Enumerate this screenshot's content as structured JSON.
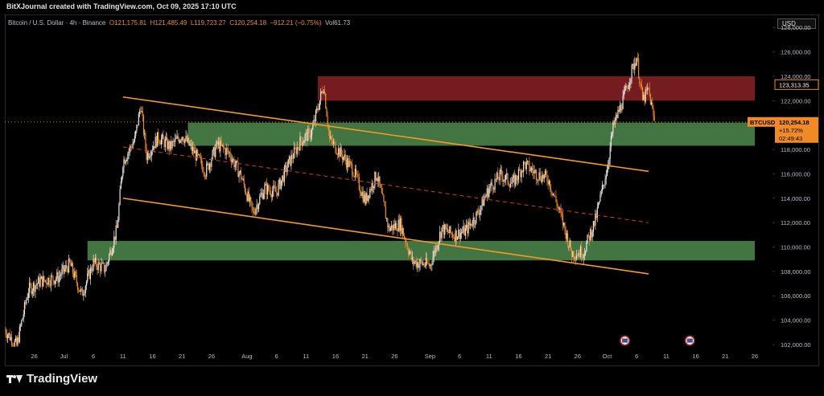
{
  "header": {
    "text": "BitXJournal created with TradingView.com, Oct 09, 2025 17:10 UTC"
  },
  "legend": {
    "name": "Bitcoin / U.S. Dollar · 4h · Binance",
    "open": "O121,175.81",
    "high": "H121,485.49",
    "low": "L119,723.27",
    "close": "C120,254.18",
    "change": "−912.21 (−0.75%)",
    "volume": "Vol61.73"
  },
  "currency_button": "USD",
  "footer": {
    "brand": "TradingView"
  },
  "colors": {
    "background": "#000000",
    "candle_up": "#e6e6e6",
    "candle_down": "#f08a24",
    "channel": "#f59a23",
    "midline": "#d0344a",
    "supply_zone": "#7a1e22",
    "demand_zone": "#4f8a4e",
    "price_tag": "#f08a24"
  },
  "chart_data": {
    "type": "candlestick",
    "symbol": "BTCUSD",
    "interval": "4h",
    "exchange": "Binance",
    "y_range": [
      101800,
      129000
    ],
    "y_ticks": [
      102000,
      104000,
      106000,
      108000,
      110000,
      112000,
      114000,
      116000,
      118000,
      120000,
      122000,
      124000,
      126000,
      128000
    ],
    "y_tick_labels": [
      "102,000.00",
      "104,000.00",
      "106,000.00",
      "108,000.00",
      "110,000.00",
      "112,000.00",
      "114,000.00",
      "116,000.00",
      "118,000.00",
      "120,000.00",
      "122,000.00",
      "124,000.00",
      "126,000.00",
      "128,000.00"
    ],
    "x_range": [
      "2025-06-21",
      "2025-10-29"
    ],
    "x_ticks": [
      {
        "date": "2025-06-26",
        "label": "26"
      },
      {
        "date": "2025-07-01",
        "label": "Jul"
      },
      {
        "date": "2025-07-06",
        "label": "6"
      },
      {
        "date": "2025-07-11",
        "label": "11"
      },
      {
        "date": "2025-07-16",
        "label": "16"
      },
      {
        "date": "2025-07-21",
        "label": "21"
      },
      {
        "date": "2025-07-26",
        "label": "26"
      },
      {
        "date": "2025-08-01",
        "label": "Aug"
      },
      {
        "date": "2025-08-06",
        "label": "6"
      },
      {
        "date": "2025-08-11",
        "label": "11"
      },
      {
        "date": "2025-08-16",
        "label": "16"
      },
      {
        "date": "2025-08-21",
        "label": "21"
      },
      {
        "date": "2025-08-26",
        "label": "26"
      },
      {
        "date": "2025-09-01",
        "label": "Sep"
      },
      {
        "date": "2025-09-06",
        "label": "6"
      },
      {
        "date": "2025-09-11",
        "label": "11"
      },
      {
        "date": "2025-09-16",
        "label": "16"
      },
      {
        "date": "2025-09-21",
        "label": "21"
      },
      {
        "date": "2025-09-26",
        "label": "26"
      },
      {
        "date": "2025-10-01",
        "label": "Oct"
      },
      {
        "date": "2025-10-06",
        "label": "6"
      },
      {
        "date": "2025-10-11",
        "label": "11"
      },
      {
        "date": "2025-10-16",
        "label": "16"
      },
      {
        "date": "2025-10-21",
        "label": "21"
      },
      {
        "date": "2025-10-26",
        "label": "26"
      }
    ],
    "price_path": [
      [
        "2025-06-21",
        103200
      ],
      [
        "2025-06-23",
        101900
      ],
      [
        "2025-06-25",
        106500
      ],
      [
        "2025-06-27",
        107200
      ],
      [
        "2025-06-30",
        107500
      ],
      [
        "2025-07-02",
        108600
      ],
      [
        "2025-07-04",
        106100
      ],
      [
        "2025-07-06",
        108700
      ],
      [
        "2025-07-08",
        108200
      ],
      [
        "2025-07-10",
        111500
      ],
      [
        "2025-07-11",
        117000
      ],
      [
        "2025-07-13",
        118800
      ],
      [
        "2025-07-14",
        121600
      ],
      [
        "2025-07-15",
        117500
      ],
      [
        "2025-07-17",
        119000
      ],
      [
        "2025-07-19",
        118200
      ],
      [
        "2025-07-21",
        119200
      ],
      [
        "2025-07-23",
        117800
      ],
      [
        "2025-07-25",
        116200
      ],
      [
        "2025-07-27",
        118400
      ],
      [
        "2025-07-29",
        117700
      ],
      [
        "2025-07-31",
        115800
      ],
      [
        "2025-08-02",
        112800
      ],
      [
        "2025-08-04",
        114800
      ],
      [
        "2025-08-06",
        114500
      ],
      [
        "2025-08-08",
        116800
      ],
      [
        "2025-08-10",
        118600
      ],
      [
        "2025-08-12",
        119500
      ],
      [
        "2025-08-14",
        123300
      ],
      [
        "2025-08-15",
        118800
      ],
      [
        "2025-08-17",
        117600
      ],
      [
        "2025-08-19",
        116300
      ],
      [
        "2025-08-21",
        113800
      ],
      [
        "2025-08-23",
        116000
      ],
      [
        "2025-08-25",
        111500
      ],
      [
        "2025-08-27",
        111900
      ],
      [
        "2025-08-29",
        108800
      ],
      [
        "2025-09-01",
        108500
      ],
      [
        "2025-09-03",
        111500
      ],
      [
        "2025-09-05",
        111000
      ],
      [
        "2025-09-07",
        111300
      ],
      [
        "2025-09-09",
        112700
      ],
      [
        "2025-09-11",
        114800
      ],
      [
        "2025-09-13",
        115900
      ],
      [
        "2025-09-15",
        115200
      ],
      [
        "2025-09-17",
        116800
      ],
      [
        "2025-09-19",
        116000
      ],
      [
        "2025-09-21",
        115600
      ],
      [
        "2025-09-23",
        112800
      ],
      [
        "2025-09-25",
        109500
      ],
      [
        "2025-09-27",
        109600
      ],
      [
        "2025-09-29",
        112200
      ],
      [
        "2025-10-01",
        116500
      ],
      [
        "2025-10-02",
        119800
      ],
      [
        "2025-10-04",
        122500
      ],
      [
        "2025-10-05",
        124200
      ],
      [
        "2025-10-06",
        125600
      ],
      [
        "2025-10-07",
        122000
      ],
      [
        "2025-10-08",
        122900
      ],
      [
        "2025-10-09",
        120254
      ]
    ],
    "zones": [
      {
        "name": "supply",
        "from": "2025-08-13",
        "to": "2025-10-26",
        "low": 122000,
        "high": 124000
      },
      {
        "name": "upper-demand",
        "from": "2025-07-22",
        "to": "2025-10-26",
        "low": 118300,
        "high": 120200
      },
      {
        "name": "lower-demand",
        "from": "2025-07-05",
        "to": "2025-10-26",
        "low": 108900,
        "high": 110500
      }
    ],
    "trendlines": [
      {
        "name": "channel-top",
        "from": [
          "2025-07-11",
          122300
        ],
        "to": [
          "2025-10-08",
          116200
        ]
      },
      {
        "name": "channel-mid",
        "from": [
          "2025-07-11",
          118200
        ],
        "to": [
          "2025-10-08",
          112000
        ],
        "style": "dashed"
      },
      {
        "name": "channel-bottom",
        "from": [
          "2025-07-11",
          114000
        ],
        "to": [
          "2025-10-08",
          107800
        ]
      }
    ],
    "marked_levels": [
      {
        "value": 123313.35,
        "label": "123,313.35"
      }
    ],
    "last_price": {
      "symbol": "BTCUSD",
      "value": 120254.18,
      "label": "120,254.18",
      "change": "+15.72%",
      "countdown": "02:49:43"
    },
    "event_markers": [
      "2025-10-04",
      "2025-10-15"
    ]
  }
}
